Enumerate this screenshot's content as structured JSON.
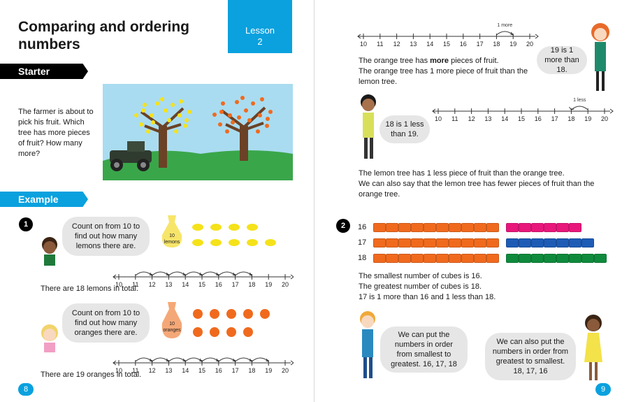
{
  "left_page": {
    "title": "Comparing and ordering numbers",
    "lesson_label": "Lesson",
    "lesson_number": "2",
    "starter_header": "Starter",
    "starter_text": "The farmer is about to pick his fruit. Which tree has more pieces of fruit? How many more?",
    "example_header": "Example",
    "example_number": "1",
    "bubble1": "Count on from 10 to find out how many lemons there are.",
    "lemon_bag_label": "10 lemons",
    "lemons_total": "There are 18 lemons in total.",
    "bubble2": "Count on from 10 to find out how many oranges there are.",
    "orange_bag_label": "10 oranges",
    "oranges_total": "There are 19 oranges in total.",
    "page_number": "8"
  },
  "right_page": {
    "top_line_more_label": "1 more",
    "girl_bubble": "19 is 1 more than 18.",
    "orange_more": "The orange tree has more pieces of fruit.",
    "orange_more_bold": "more",
    "orange_1more": "The orange tree has 1 more piece of fruit than the lemon tree.",
    "line_less_label": "1 less",
    "boy_bubble": "18 is 1 less than 19.",
    "lemon_less": "The lemon tree has 1 less piece of fruit than the orange tree.",
    "lemon_fewer": "We can also say that the lemon tree has fewer pieces of fruit than the orange tree.",
    "example_number": "2",
    "cube_rows": [
      {
        "label": "16",
        "orange": 10,
        "extra": 6,
        "extra_color": "#e8177b"
      },
      {
        "label": "17",
        "orange": 10,
        "extra": 7,
        "extra_color": "#1e5bb5"
      },
      {
        "label": "18",
        "orange": 10,
        "extra": 8,
        "extra_color": "#0f8a3c"
      }
    ],
    "smallest": "The smallest number of cubes is 16.",
    "greatest": "The greatest number of cubes is 18.",
    "seventeen": "17 is 1 more than 16 and 1 less than 18.",
    "bubble_order_greatest": "We can put the numbers in order from smallest to greatest. 16, 17, 18",
    "bubble_order_smallest": "We can also put the numbers in order from greatest to smallest. 18, 17, 16",
    "page_number": "9"
  },
  "number_line": [
    "10",
    "11",
    "12",
    "13",
    "14",
    "15",
    "16",
    "17",
    "18",
    "19",
    "20"
  ],
  "colors": {
    "accent": "#0aa1de",
    "orange": "#f06a1e",
    "lemon": "#f5e21a"
  }
}
